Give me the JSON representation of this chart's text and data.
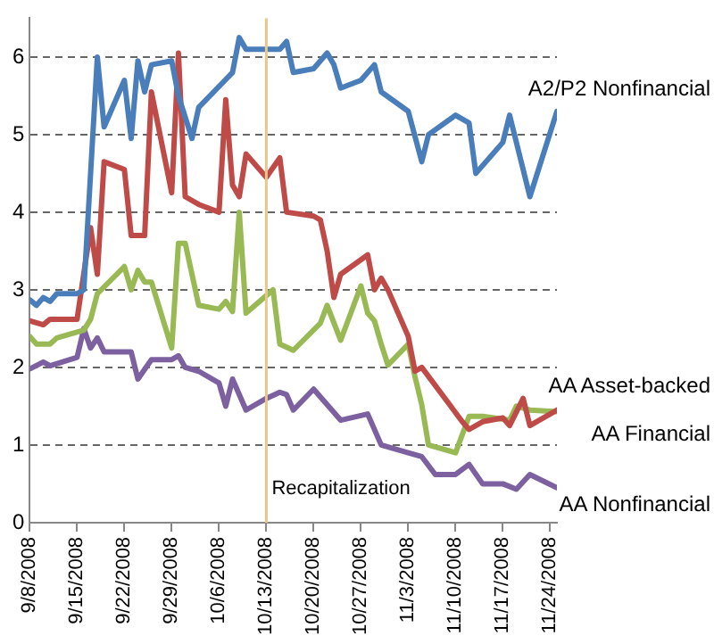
{
  "chart_data": {
    "type": "line",
    "xlim": [
      "2008-09-08",
      "2008-11-25"
    ],
    "xticks": [
      {
        "value": "2008-09-08",
        "label": "9/8/2008"
      },
      {
        "value": "2008-09-15",
        "label": "9/15/2008"
      },
      {
        "value": "2008-09-22",
        "label": "9/22/2008"
      },
      {
        "value": "2008-09-29",
        "label": "9/29/2008"
      },
      {
        "value": "2008-10-06",
        "label": "10/6/2008"
      },
      {
        "value": "2008-10-13",
        "label": "10/13/2008"
      },
      {
        "value": "2008-10-20",
        "label": "10/20/2008"
      },
      {
        "value": "2008-10-27",
        "label": "10/27/2008"
      },
      {
        "value": "2008-11-03",
        "label": "11/3/2008"
      },
      {
        "value": "2008-11-10",
        "label": "11/10/2008"
      },
      {
        "value": "2008-11-17",
        "label": "11/17/2008"
      },
      {
        "value": "2008-11-24",
        "label": "11/24/2008"
      }
    ],
    "ylim": [
      0,
      6.5
    ],
    "yticks": [
      0,
      1,
      2,
      3,
      4,
      5,
      6
    ],
    "grid": "y",
    "legend": false,
    "marker": "none",
    "line_style": "solid",
    "ref_lines": [
      {
        "axis": "x",
        "value": "2008-10-13",
        "label": "Recapitalization",
        "color": "#e8c88a"
      }
    ],
    "series": [
      {
        "name": "A2/P2 Nonfinancial",
        "color": "#4a7ebb",
        "x": [
          "2008-09-08",
          "2008-09-09",
          "2008-09-10",
          "2008-09-11",
          "2008-09-12",
          "2008-09-15",
          "2008-09-16",
          "2008-09-18",
          "2008-09-19",
          "2008-09-22",
          "2008-09-23",
          "2008-09-24",
          "2008-09-25",
          "2008-09-26",
          "2008-09-29",
          "2008-09-30",
          "2008-10-02",
          "2008-10-03",
          "2008-10-08",
          "2008-10-09",
          "2008-10-10",
          "2008-10-15",
          "2008-10-16",
          "2008-10-17",
          "2008-10-20",
          "2008-10-22",
          "2008-10-23",
          "2008-10-24",
          "2008-10-27",
          "2008-10-29",
          "2008-10-30",
          "2008-11-03",
          "2008-11-05",
          "2008-11-06",
          "2008-11-10",
          "2008-11-12",
          "2008-11-13",
          "2008-11-17",
          "2008-11-18",
          "2008-11-21",
          "2008-11-25"
        ],
        "values": [
          2.87,
          2.8,
          2.9,
          2.85,
          2.95,
          2.95,
          3.0,
          6.0,
          5.1,
          5.7,
          4.95,
          5.95,
          5.55,
          5.9,
          5.95,
          5.5,
          4.95,
          5.35,
          5.8,
          6.25,
          6.1,
          6.1,
          6.2,
          5.8,
          5.85,
          6.05,
          5.9,
          5.6,
          5.7,
          5.9,
          5.55,
          5.3,
          4.65,
          5.0,
          5.25,
          5.15,
          4.5,
          4.9,
          5.25,
          4.2,
          5.3
        ]
      },
      {
        "name": "AA Asset-backed",
        "color": "#be4b48",
        "x": [
          "2008-09-08",
          "2008-09-10",
          "2008-09-11",
          "2008-09-15",
          "2008-09-17",
          "2008-09-18",
          "2008-09-19",
          "2008-09-22",
          "2008-09-23",
          "2008-09-25",
          "2008-09-26",
          "2008-09-29",
          "2008-09-30",
          "2008-10-01",
          "2008-10-03",
          "2008-10-06",
          "2008-10-07",
          "2008-10-08",
          "2008-10-09",
          "2008-10-10",
          "2008-10-13",
          "2008-10-15",
          "2008-10-16",
          "2008-10-20",
          "2008-10-21",
          "2008-10-22",
          "2008-10-23",
          "2008-10-24",
          "2008-10-28",
          "2008-10-29",
          "2008-10-30",
          "2008-10-31",
          "2008-11-03",
          "2008-11-04",
          "2008-11-05",
          "2008-11-11",
          "2008-11-12",
          "2008-11-14",
          "2008-11-17",
          "2008-11-18",
          "2008-11-20",
          "2008-11-21",
          "2008-11-25"
        ],
        "values": [
          2.6,
          2.55,
          2.62,
          2.62,
          3.8,
          3.2,
          4.65,
          4.55,
          3.7,
          3.7,
          5.55,
          4.25,
          6.05,
          4.2,
          4.1,
          4.0,
          5.45,
          4.35,
          4.2,
          4.75,
          4.45,
          4.7,
          4.0,
          3.95,
          3.9,
          3.5,
          2.9,
          3.2,
          3.45,
          3.0,
          3.15,
          3.0,
          2.4,
          1.95,
          2.0,
          1.3,
          1.2,
          1.3,
          1.35,
          1.25,
          1.6,
          1.25,
          1.45
        ]
      },
      {
        "name": "AA Financial",
        "color": "#98b954",
        "x": [
          "2008-09-08",
          "2008-09-09",
          "2008-09-11",
          "2008-09-12",
          "2008-09-16",
          "2008-09-17",
          "2008-09-18",
          "2008-09-22",
          "2008-09-23",
          "2008-09-24",
          "2008-09-25",
          "2008-09-26",
          "2008-09-29",
          "2008-09-30",
          "2008-10-01",
          "2008-10-03",
          "2008-10-06",
          "2008-10-07",
          "2008-10-08",
          "2008-10-09",
          "2008-10-10",
          "2008-10-14",
          "2008-10-15",
          "2008-10-17",
          "2008-10-21",
          "2008-10-22",
          "2008-10-24",
          "2008-10-27",
          "2008-10-28",
          "2008-10-29",
          "2008-10-30",
          "2008-10-31",
          "2008-11-03",
          "2008-11-04",
          "2008-11-05",
          "2008-11-06",
          "2008-11-10",
          "2008-11-12",
          "2008-11-14",
          "2008-11-18",
          "2008-11-19",
          "2008-11-21",
          "2008-11-25"
        ],
        "values": [
          2.4,
          2.3,
          2.3,
          2.38,
          2.48,
          2.62,
          2.95,
          3.3,
          3.0,
          3.25,
          3.1,
          3.1,
          2.25,
          3.6,
          3.6,
          2.8,
          2.75,
          2.85,
          2.72,
          4.0,
          2.7,
          3.0,
          2.3,
          2.22,
          2.57,
          2.8,
          2.35,
          3.05,
          2.7,
          2.6,
          2.3,
          2.03,
          2.3,
          1.88,
          1.52,
          1.0,
          0.9,
          1.37,
          1.37,
          1.32,
          1.5,
          1.45,
          1.43
        ]
      },
      {
        "name": "AA Nonfinancial",
        "color": "#7d60a0",
        "x": [
          "2008-09-08",
          "2008-09-10",
          "2008-09-11",
          "2008-09-15",
          "2008-09-16",
          "2008-09-17",
          "2008-09-18",
          "2008-09-19",
          "2008-09-23",
          "2008-09-24",
          "2008-09-26",
          "2008-09-29",
          "2008-09-30",
          "2008-10-01",
          "2008-10-03",
          "2008-10-06",
          "2008-10-07",
          "2008-10-08",
          "2008-10-10",
          "2008-10-13",
          "2008-10-15",
          "2008-10-16",
          "2008-10-17",
          "2008-10-20",
          "2008-10-24",
          "2008-10-28",
          "2008-10-30",
          "2008-11-03",
          "2008-11-05",
          "2008-11-07",
          "2008-11-10",
          "2008-11-12",
          "2008-11-14",
          "2008-11-17",
          "2008-11-19",
          "2008-11-21",
          "2008-11-25"
        ],
        "values": [
          1.98,
          2.07,
          2.02,
          2.13,
          2.5,
          2.25,
          2.38,
          2.2,
          2.2,
          1.85,
          2.1,
          2.1,
          2.15,
          2.0,
          1.95,
          1.8,
          1.5,
          1.85,
          1.45,
          1.6,
          1.68,
          1.65,
          1.45,
          1.72,
          1.32,
          1.4,
          1.0,
          0.9,
          0.85,
          0.62,
          0.62,
          0.75,
          0.5,
          0.5,
          0.43,
          0.62,
          0.45
        ]
      }
    ]
  }
}
